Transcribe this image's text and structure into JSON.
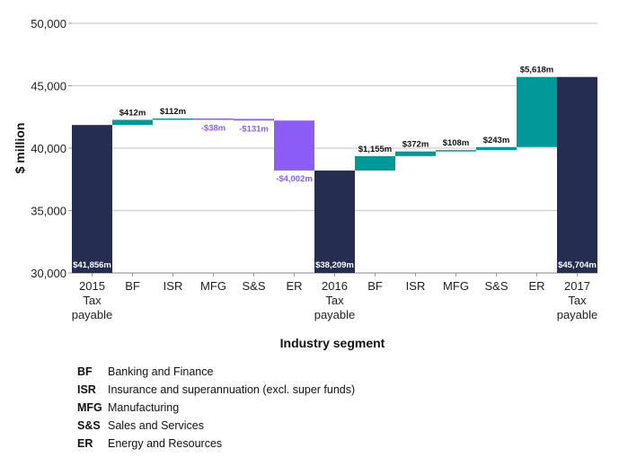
{
  "chart_data": {
    "type": "waterfall",
    "title": "",
    "xlabel": "Industry segment",
    "ylabel": "$ million",
    "ylim": [
      30000,
      50000
    ],
    "yticks": [
      30000,
      35000,
      40000,
      45000,
      50000
    ],
    "ytick_labels": [
      "30,000",
      "35,000",
      "40,000",
      "45,000",
      "50,000"
    ],
    "grid": true,
    "categories": [
      [
        "2015",
        "Tax",
        "payable"
      ],
      [
        "BF"
      ],
      [
        "ISR"
      ],
      [
        "MFG"
      ],
      [
        "S&S"
      ],
      [
        "ER"
      ],
      [
        "2016",
        "Tax",
        "payable"
      ],
      [
        "BF"
      ],
      [
        "ISR"
      ],
      [
        "MFG"
      ],
      [
        "S&S"
      ],
      [
        "ER"
      ],
      [
        "2017",
        "Tax",
        "payable"
      ]
    ],
    "bars": [
      {
        "kind": "total",
        "value": 41856,
        "label": "$41,856m"
      },
      {
        "kind": "delta",
        "value": 412,
        "label": "$412m"
      },
      {
        "kind": "delta",
        "value": 112,
        "label": "$112m"
      },
      {
        "kind": "delta",
        "value": -38,
        "label": "-$38m"
      },
      {
        "kind": "delta",
        "value": -131,
        "label": "-$131m"
      },
      {
        "kind": "delta",
        "value": -4002,
        "label": "-$4,002m"
      },
      {
        "kind": "total",
        "value": 38209,
        "label": "$38,209m"
      },
      {
        "kind": "delta",
        "value": 1155,
        "label": "$1,155m"
      },
      {
        "kind": "delta",
        "value": 372,
        "label": "$372m"
      },
      {
        "kind": "delta",
        "value": 108,
        "label": "$108m"
      },
      {
        "kind": "delta",
        "value": 243,
        "label": "$243m"
      },
      {
        "kind": "delta",
        "value": 5618,
        "label": "$5,618m"
      },
      {
        "kind": "total",
        "value": 45704,
        "label": "$45,704m"
      }
    ],
    "colors": {
      "total": "#252d50",
      "increase": "#00999a",
      "decrease": "#8b5cf6",
      "total_label": "#ffffff",
      "increase_label": "#111111",
      "decrease_label": "#8b5cf6"
    }
  },
  "legend": [
    {
      "abbr": "BF",
      "name": "Banking and Finance"
    },
    {
      "abbr": "ISR",
      "name": "Insurance and superannuation (excl. super funds)"
    },
    {
      "abbr": "MFG",
      "name": "Manufacturing"
    },
    {
      "abbr": "S&S",
      "name": "Sales and Services"
    },
    {
      "abbr": "ER",
      "name": "Energy and Resources"
    }
  ]
}
